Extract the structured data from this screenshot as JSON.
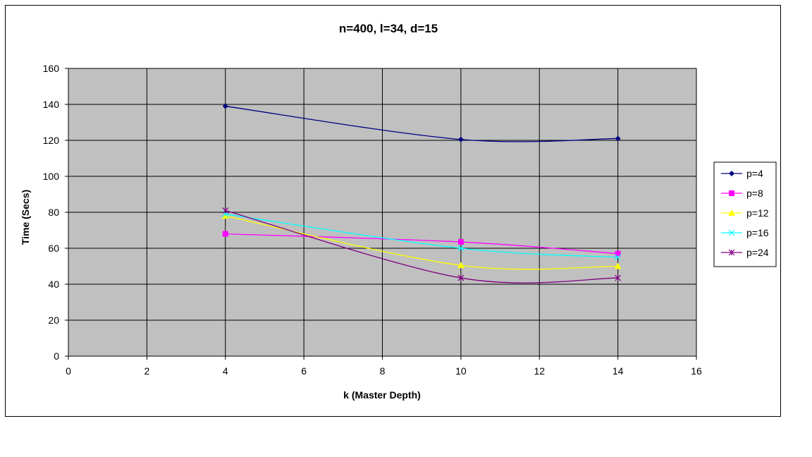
{
  "chart_data": {
    "type": "line",
    "title": "n=400, l=34, d=15",
    "xlabel": "k (Master Depth)",
    "ylabel": "Time (Secs)",
    "xlim": [
      0,
      16
    ],
    "ylim": [
      0,
      160
    ],
    "xticks": [
      0,
      2,
      4,
      6,
      8,
      10,
      12,
      14,
      16
    ],
    "yticks": [
      0,
      20,
      40,
      60,
      80,
      100,
      120,
      140,
      160
    ],
    "grid": true,
    "legend_position": "right",
    "plot_background": "#C0C0C0",
    "x": [
      4,
      10,
      14
    ],
    "series": [
      {
        "name": "p=4",
        "values": [
          139,
          120.5,
          121
        ],
        "color": "#000080",
        "marker": "diamond"
      },
      {
        "name": "p=8",
        "values": [
          68,
          63.5,
          57
        ],
        "color": "#FF00FF",
        "marker": "square"
      },
      {
        "name": "p=12",
        "values": [
          78,
          50.5,
          50
        ],
        "color": "#FFFF00",
        "marker": "triangle"
      },
      {
        "name": "p=16",
        "values": [
          79,
          60,
          55
        ],
        "color": "#00FFFF",
        "marker": "x"
      },
      {
        "name": "p=24",
        "values": [
          81,
          43.5,
          43.5
        ],
        "color": "#800080",
        "marker": "star"
      }
    ]
  }
}
